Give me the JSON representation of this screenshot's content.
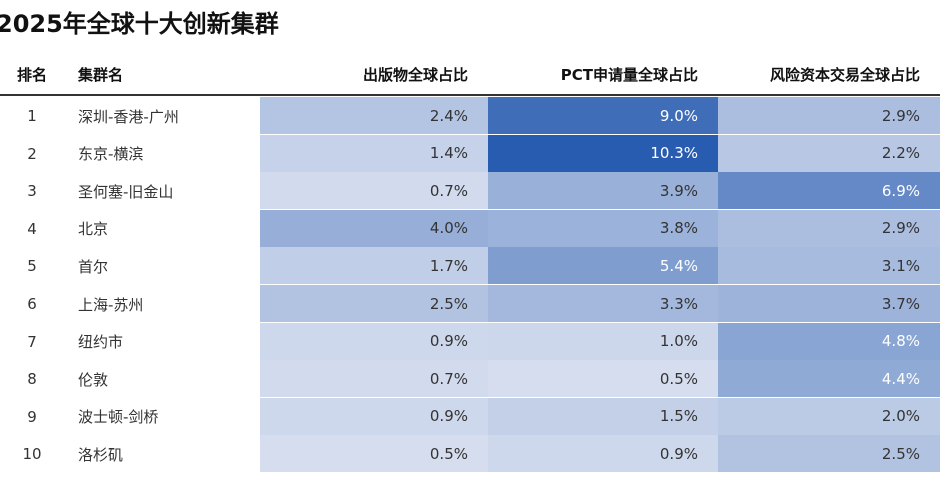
{
  "title": "2025年全球十大创新集群",
  "table": {
    "header": [
      "排名",
      "集群名",
      "出版物全球占比",
      "PCT申请量全球占比",
      "风险资本交易全球占比"
    ],
    "rows": [
      [
        "1",
        "深圳-香港-广州",
        "2.4%",
        "9.0%",
        "2.9%"
      ],
      [
        "2",
        "东京-横滨",
        "1.4%",
        "10.3%",
        "2.2%"
      ],
      [
        "3",
        "圣何塞-旧金山",
        "0.7%",
        "3.9%",
        "6.9%"
      ],
      [
        "4",
        "北京",
        "4.0%",
        "3.8%",
        "2.9%"
      ],
      [
        "5",
        "首尔",
        "1.7%",
        "5.4%",
        "3.1%"
      ],
      [
        "6",
        "上海-苏州",
        "2.5%",
        "3.3%",
        "3.7%"
      ],
      [
        "7",
        "纽约市",
        "0.9%",
        "1.0%",
        "4.8%"
      ],
      [
        "8",
        "伦敦",
        "0.7%",
        "0.5%",
        "4.4%"
      ],
      [
        "9",
        "波士顿-剑桥",
        "0.9%",
        "1.5%",
        "2.0%"
      ],
      [
        "10",
        "洛杉矶",
        "0.5%",
        "0.9%",
        "2.5%"
      ]
    ]
  }
}
